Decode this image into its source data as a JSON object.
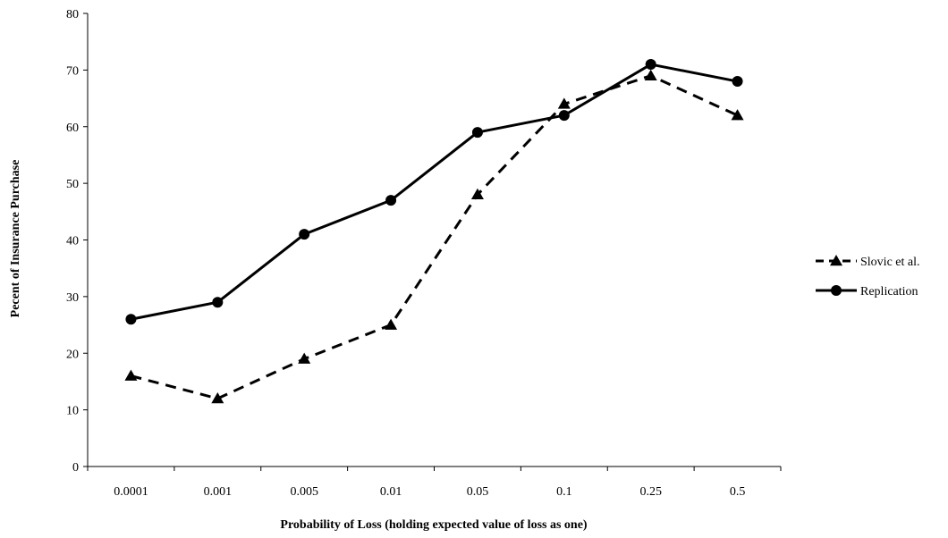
{
  "chart_data": {
    "type": "line",
    "categories": [
      "0.0001",
      "0.001",
      "0.005",
      "0.01",
      "0.05",
      "0.1",
      "0.25",
      "0.5"
    ],
    "series": [
      {
        "name": "Slovic et al.",
        "values": [
          16,
          12,
          19,
          25,
          48,
          64,
          69,
          62
        ],
        "line_style": "dashed",
        "marker": "triangle",
        "color": "#000000"
      },
      {
        "name": "Replication",
        "values": [
          26,
          29,
          41,
          47,
          59,
          62,
          71,
          68
        ],
        "line_style": "solid",
        "marker": "circle",
        "color": "#000000"
      }
    ],
    "title": "",
    "xlabel": "Probability of Loss (holding expected value of loss as one)",
    "ylabel": "Pecent of Insurance Purchase",
    "ylim": [
      0,
      80
    ],
    "yticks": [
      0,
      10,
      20,
      30,
      40,
      50,
      60,
      70,
      80
    ],
    "grid": false,
    "legend_position": "right"
  }
}
